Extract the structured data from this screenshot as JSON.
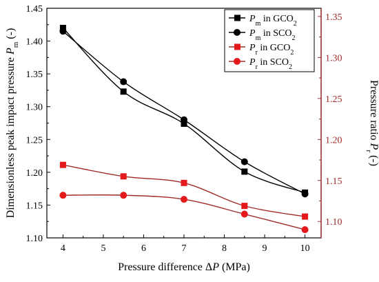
{
  "chart_data": {
    "type": "line",
    "xlabel": "Pressure difference ΔP (MPa)",
    "ylabel_left": "Dimensionless peak impact pressure Pm (-)",
    "ylabel_right": "Pressure ratio Pr (-)",
    "xlim": [
      3.6,
      10.4
    ],
    "ylim_left": [
      1.1,
      1.45
    ],
    "ylim_right": [
      1.08,
      1.36
    ],
    "x_ticks": [
      "4",
      "5",
      "6",
      "7",
      "8",
      "9",
      "10"
    ],
    "y_left_ticks": [
      "1.10",
      "1.15",
      "1.20",
      "1.25",
      "1.30",
      "1.35",
      "1.40",
      "1.45"
    ],
    "y_right_ticks": [
      "1.10",
      "1.15",
      "1.20",
      "1.25",
      "1.30",
      "1.35"
    ],
    "legend_position": "top-right",
    "series": [
      {
        "name": "Pm in GCO2",
        "axis": "left",
        "marker": "square",
        "color": "#000000",
        "x": [
          4,
          5.5,
          7,
          8.5,
          10
        ],
        "values": [
          1.42,
          1.323,
          1.274,
          1.201,
          1.169
        ]
      },
      {
        "name": "Pm in SCO2",
        "axis": "left",
        "marker": "circle",
        "color": "#000000",
        "x": [
          4,
          5.5,
          7,
          8.5,
          10
        ],
        "values": [
          1.415,
          1.338,
          1.28,
          1.216,
          1.167
        ]
      },
      {
        "name": "Pr in GCO2",
        "axis": "right",
        "marker": "square",
        "color": "#e3191c",
        "x": [
          4,
          5.5,
          7,
          8.5,
          10
        ],
        "values": [
          1.169,
          1.155,
          1.147,
          1.119,
          1.106
        ]
      },
      {
        "name": "Pr in SCO2",
        "axis": "right",
        "marker": "circle",
        "color": "#e3191c",
        "x": [
          4,
          5.5,
          7,
          8.5,
          10
        ],
        "values": [
          1.132,
          1.132,
          1.127,
          1.109,
          1.09
        ]
      }
    ],
    "legend": [
      {
        "sym": "P",
        "sub": "m",
        "text": " in GCO",
        "sub2": "2"
      },
      {
        "sym": "P",
        "sub": "m",
        "text": " in SCO",
        "sub2": "2"
      },
      {
        "sym": "P",
        "sub": "r",
        "text": " in GCO",
        "sub2": "2"
      },
      {
        "sym": "P",
        "sub": "r",
        "text": " in SCO",
        "sub2": "2"
      }
    ],
    "colors": {
      "left_axis": "#000000",
      "right_axis": "#a02a2a",
      "line_red": "#a02a2a"
    }
  }
}
